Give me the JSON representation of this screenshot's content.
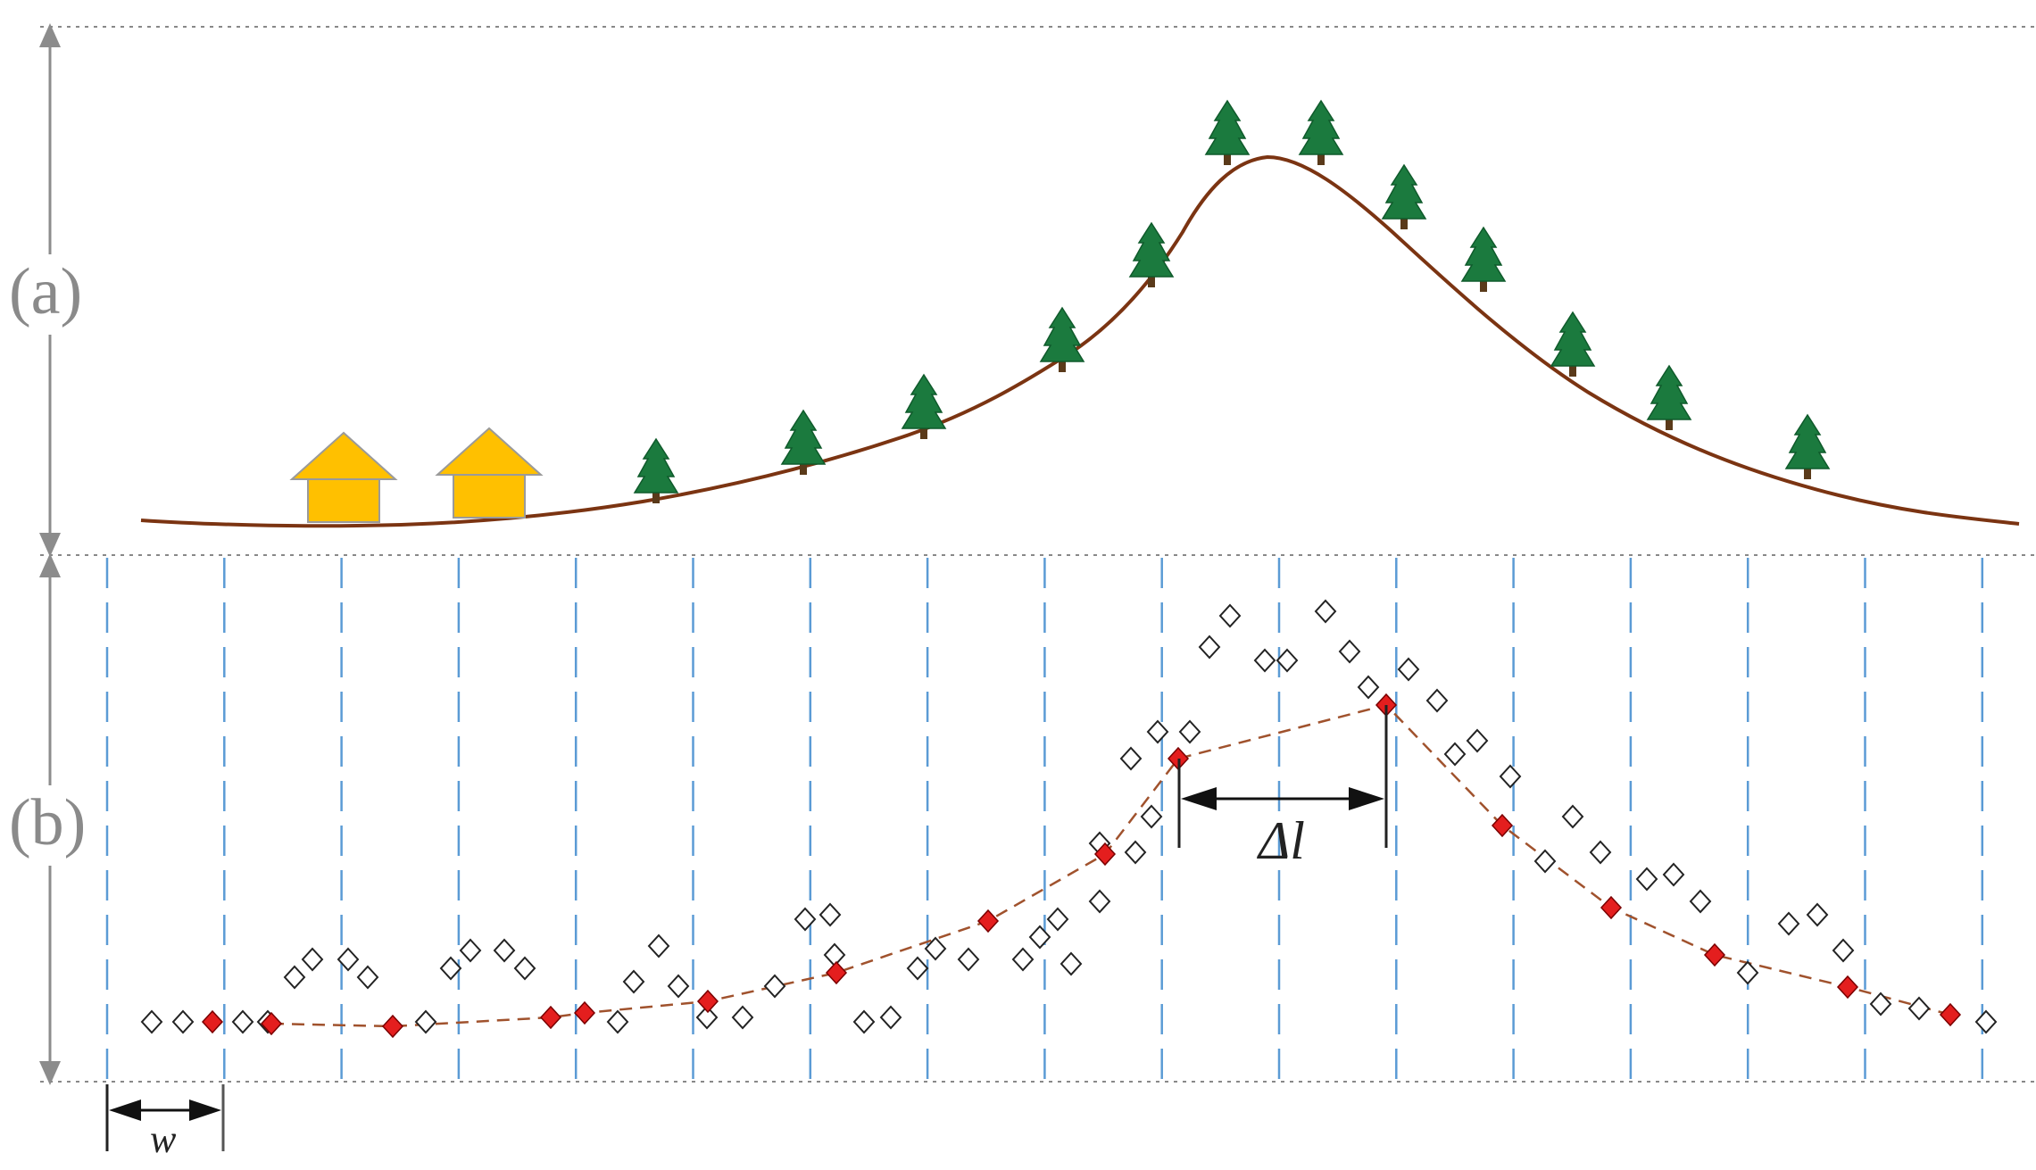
{
  "labels": {
    "panel_a": "(a)",
    "panel_b": "(b)",
    "delta_l": "Δl",
    "w": "w"
  },
  "colors": {
    "terrain": "#7b3412",
    "tree": "#1b7a3e",
    "house": "#ffc000",
    "grid": "#5b9bd5",
    "selected_point": "#e41e1e",
    "fit_line": "#a0522d",
    "guide": "#8c8c8c"
  },
  "icons": {
    "tree": "pine-tree-icon",
    "house": "house-icon",
    "open_point": "diamond-outline-icon",
    "selected_point": "diamond-filled-icon"
  }
}
